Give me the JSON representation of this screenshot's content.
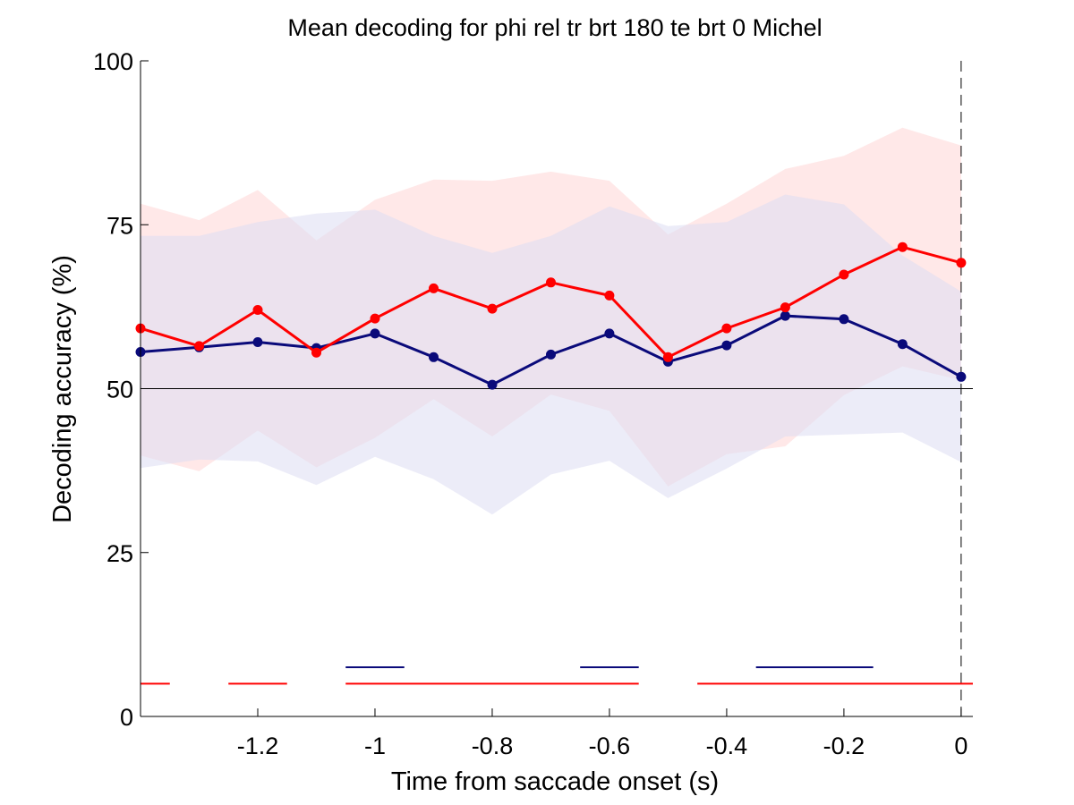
{
  "chart_data": {
    "type": "line",
    "title": "Mean decoding for phi rel tr brt 180 te brt 0  Michel",
    "xlabel": "Time from saccade onset (s)",
    "ylabel": "Decoding accuracy (%)",
    "xlim": [
      -1.4,
      0.02
    ],
    "ylim": [
      0,
      100
    ],
    "xticks": [
      -1.2,
      -1,
      -0.8,
      -0.6,
      -0.4,
      -0.2,
      0
    ],
    "xtick_labels": [
      "-1.2",
      "-1",
      "-0.8",
      "-0.6",
      "-0.4",
      "-0.2",
      "0"
    ],
    "yticks": [
      0,
      25,
      50,
      75,
      100
    ],
    "ytick_labels": [
      "0",
      "25",
      "50",
      "75",
      "100"
    ],
    "grid": false,
    "reference_line_y": 50,
    "event_line_x": 0,
    "x": [
      -1.4,
      -1.3,
      -1.2,
      -1.1,
      -1.0,
      -0.9,
      -0.8,
      -0.7,
      -0.6,
      -0.5,
      -0.4,
      -0.3,
      -0.2,
      -0.1,
      0.0
    ],
    "series": [
      {
        "color": "#ff0000",
        "band_color": "#ffd6d6",
        "values": [
          59.2,
          56.5,
          62.0,
          55.5,
          60.7,
          65.3,
          62.2,
          66.2,
          64.2,
          54.8,
          59.2,
          62.4,
          67.4,
          71.6,
          69.2
        ],
        "upper": [
          78.2,
          75.7,
          80.3,
          72.6,
          78.8,
          81.9,
          81.7,
          83.1,
          81.7,
          73.5,
          78.2,
          83.5,
          85.5,
          89.8,
          87.1
        ],
        "lower": [
          39.8,
          37.4,
          43.6,
          38.0,
          42.5,
          48.4,
          42.7,
          49.1,
          46.6,
          35.1,
          40.0,
          41.2,
          49.0,
          53.4,
          51.3
        ],
        "significance": [
          [
            -1.4,
            -1.35
          ],
          [
            -1.25,
            -1.15
          ],
          [
            -1.05,
            -0.55
          ],
          [
            -0.45,
            0.02
          ]
        ]
      },
      {
        "color": "#0a0a7a",
        "band_color": "#dcdcf2",
        "values": [
          55.6,
          56.3,
          57.1,
          56.2,
          58.4,
          54.8,
          50.6,
          55.2,
          58.4,
          54.1,
          56.6,
          61.1,
          60.6,
          56.8,
          51.8
        ],
        "upper": [
          73.3,
          73.3,
          75.4,
          76.7,
          77.3,
          73.3,
          70.7,
          73.3,
          77.8,
          74.8,
          75.4,
          79.6,
          78.1,
          70.3,
          64.8
        ],
        "lower": [
          37.9,
          39.2,
          38.9,
          35.3,
          39.6,
          36.2,
          30.8,
          36.9,
          39.0,
          33.3,
          37.8,
          42.7,
          43.0,
          43.3,
          38.8
        ],
        "significance": [
          [
            -1.05,
            -0.95
          ],
          [
            -0.65,
            -0.55
          ],
          [
            -0.35,
            -0.15
          ]
        ]
      }
    ]
  }
}
